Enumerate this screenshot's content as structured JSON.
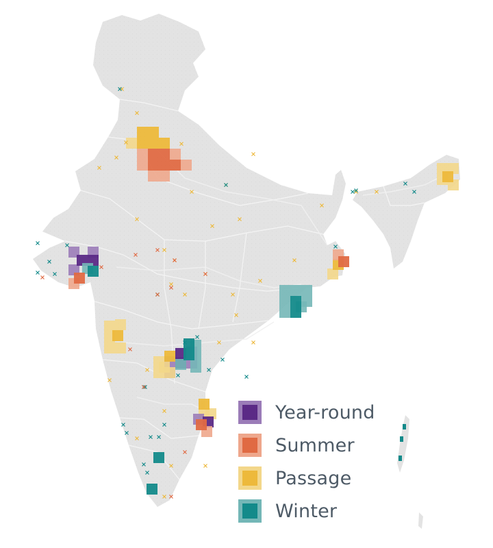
{
  "colors": {
    "land": "#e3e3e3",
    "land_shade": "#d6d6d6",
    "border": "#f7f7f7",
    "river": "#f2f2f2",
    "year_round": "#5b2a86",
    "year_round_light": "#9b7cb8",
    "summer": "#e06a43",
    "summer_light": "#eea78c",
    "passage": "#edb93b",
    "passage_light": "#f3d78a",
    "winter": "#138a8a",
    "winter_light": "#74b7b7"
  },
  "legend": [
    {
      "key": "year_round",
      "label": "Year-round"
    },
    {
      "key": "summer",
      "label": "Summer"
    },
    {
      "key": "passage",
      "label": "Passage"
    },
    {
      "key": "winter",
      "label": "Winter"
    }
  ],
  "cells": [
    {
      "s": "passage",
      "c": [
        [
          200,
          185
        ],
        [
          216,
          185
        ],
        [
          200,
          201
        ],
        [
          216,
          201
        ],
        [
          232,
          201
        ]
      ],
      "l": [
        [
          184,
          201
        ]
      ]
    },
    {
      "s": "summer",
      "c": [
        [
          216,
          217
        ],
        [
          232,
          217
        ],
        [
          216,
          233
        ],
        [
          232,
          233
        ],
        [
          248,
          233
        ]
      ],
      "l": [
        [
          200,
          217
        ],
        [
          248,
          217
        ],
        [
          200,
          233
        ],
        [
          264,
          233
        ],
        [
          216,
          249
        ],
        [
          232,
          249
        ]
      ]
    },
    {
      "s": "year_round",
      "c": [
        [
          112,
          372
        ],
        [
          128,
          372
        ]
      ],
      "l": [
        [
          100,
          360
        ],
        [
          128,
          360
        ],
        [
          100,
          386
        ]
      ]
    },
    {
      "s": "winter",
      "c": [
        [
          128,
          388
        ]
      ],
      "l": [
        [
          120,
          384
        ]
      ]
    },
    {
      "s": "summer",
      "c": [
        [
          108,
          398
        ]
      ],
      "l": [
        [
          100,
          406
        ]
      ]
    },
    {
      "s": "passage",
      "c": [
        [
          486,
          378
        ]
      ],
      "l": [
        [
          478,
          392
        ]
      ]
    },
    {
      "s": "summer",
      "c": [
        [
          494,
          374
        ]
      ],
      "l": [
        [
          486,
          364
        ]
      ]
    },
    {
      "s": "passage",
      "c": [
        [
          646,
          250
        ]
      ],
      "l": [
        [
          638,
          238
        ],
        [
          654,
          238
        ],
        [
          638,
          254
        ],
        [
          654,
          262
        ]
      ]
    },
    {
      "s": "winter",
      "c": [
        [
          424,
          432
        ],
        [
          424,
          448
        ]
      ],
      "l": [
        [
          408,
          432
        ],
        [
          408,
          448
        ],
        [
          440,
          416
        ],
        [
          440,
          432
        ],
        [
          424,
          416
        ],
        [
          408,
          416
        ],
        [
          432,
          440
        ]
      ]
    },
    {
      "s": "passage",
      "c": [
        [
          164,
          482
        ]
      ],
      "l": [
        [
          152,
          468
        ],
        [
          168,
          466
        ],
        [
          152,
          484
        ],
        [
          152,
          500
        ],
        [
          168,
          500
        ]
      ]
    },
    {
      "s": "year_round",
      "c": [
        [
          256,
          508
        ],
        [
          256,
          522
        ]
      ],
      "l": [
        [
          240,
          520
        ],
        [
          272,
          506
        ],
        [
          272,
          522
        ],
        [
          240,
          536
        ]
      ]
    },
    {
      "s": "winter",
      "c": [
        [
          268,
          494
        ],
        [
          268,
          510
        ]
      ],
      "l": [
        [
          278,
          496
        ],
        [
          278,
          512
        ],
        [
          278,
          528
        ],
        [
          256,
          524
        ]
      ]
    },
    {
      "s": "passage",
      "c": [
        [
          240,
          512
        ]
      ],
      "l": [
        [
          224,
          520
        ],
        [
          224,
          536
        ],
        [
          240,
          536
        ],
        [
          232,
          528
        ]
      ]
    },
    {
      "s": "passage",
      "c": [
        [
          290,
          582
        ]
      ],
      "l": [
        [
          290,
          596
        ],
        [
          300,
          596
        ]
      ]
    },
    {
      "s": "year_round",
      "c": [
        [
          296,
          608
        ]
      ],
      "l": [
        [
          282,
          604
        ]
      ]
    },
    {
      "s": "summer",
      "c": [
        [
          286,
          612
        ]
      ],
      "l": [
        [
          294,
          622
        ]
      ]
    },
    {
      "s": "winter",
      "c": [
        [
          224,
          660
        ]
      ],
      "l": []
    },
    {
      "s": "winter",
      "c": [
        [
          214,
          706
        ]
      ],
      "l": []
    }
  ],
  "crosses": [
    {
      "s": "passage",
      "p": [
        [
          178,
          130
        ],
        [
          200,
          165
        ],
        [
          184,
          208
        ],
        [
          145,
          245
        ],
        [
          170,
          230
        ],
        [
          265,
          210
        ],
        [
          280,
          280
        ],
        [
          330,
          270
        ],
        [
          370,
          225
        ],
        [
          310,
          330
        ],
        [
          350,
          320
        ],
        [
          270,
          430
        ],
        [
          230,
          430
        ],
        [
          340,
          430
        ],
        [
          380,
          410
        ],
        [
          200,
          320
        ],
        [
          240,
          365
        ],
        [
          255,
          380
        ],
        [
          300,
          400
        ],
        [
          250,
          415
        ],
        [
          345,
          460
        ],
        [
          320,
          500
        ],
        [
          370,
          500
        ],
        [
          160,
          555
        ],
        [
          215,
          540
        ],
        [
          240,
          600
        ],
        [
          200,
          640
        ],
        [
          250,
          680
        ],
        [
          240,
          725
        ],
        [
          300,
          680
        ],
        [
          550,
          280
        ],
        [
          520,
          280
        ],
        [
          430,
          380
        ],
        [
          470,
          300
        ]
      ]
    },
    {
      "s": "winter",
      "p": [
        [
          55,
          355
        ],
        [
          98,
          358
        ],
        [
          72,
          382
        ],
        [
          55,
          398
        ],
        [
          80,
          400
        ],
        [
          175,
          130
        ],
        [
          330,
          270
        ],
        [
          515,
          280
        ],
        [
          520,
          278
        ],
        [
          592,
          268
        ],
        [
          605,
          280
        ],
        [
          490,
          360
        ],
        [
          230,
          430
        ],
        [
          270,
          500
        ],
        [
          288,
          492
        ],
        [
          260,
          548
        ],
        [
          305,
          540
        ],
        [
          325,
          525
        ],
        [
          360,
          550
        ],
        [
          210,
          565
        ],
        [
          212,
          565
        ],
        [
          240,
          620
        ],
        [
          180,
          620
        ],
        [
          220,
          638
        ],
        [
          232,
          638
        ],
        [
          185,
          632
        ],
        [
          215,
          690
        ],
        [
          210,
          678
        ]
      ]
    },
    {
      "s": "summer",
      "p": [
        [
          230,
          365
        ],
        [
          255,
          380
        ],
        [
          198,
          372
        ],
        [
          250,
          420
        ],
        [
          300,
          400
        ],
        [
          190,
          510
        ],
        [
          270,
          660
        ],
        [
          210,
          565
        ],
        [
          250,
          725
        ],
        [
          148,
          390
        ],
        [
          62,
          405
        ],
        [
          230,
          430
        ]
      ]
    }
  ]
}
